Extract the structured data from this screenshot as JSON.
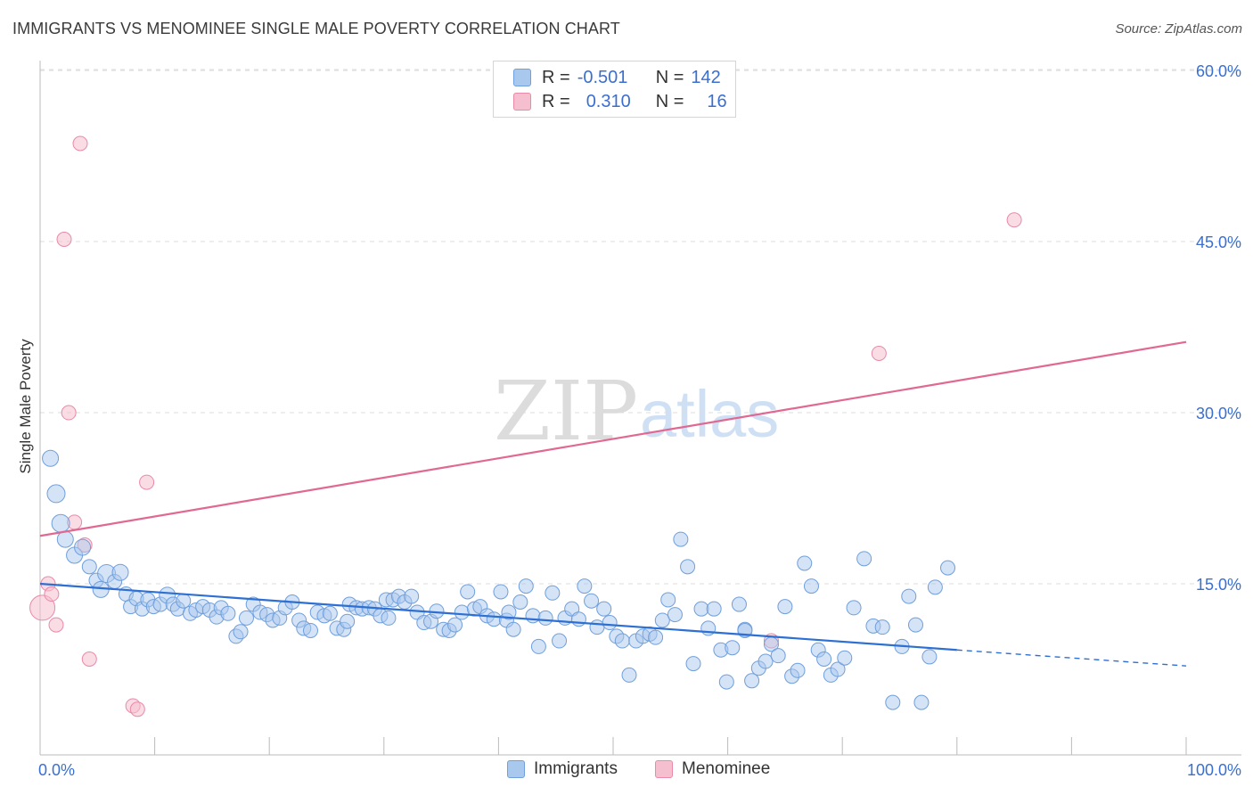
{
  "title": "IMMIGRANTS VS MENOMINEE SINGLE MALE POVERTY CORRELATION CHART",
  "source": "Source: ZipAtlas.com",
  "watermark": {
    "zip": "ZIP",
    "atlas": "atlas"
  },
  "colors": {
    "blue_fill": "#a9c8ee",
    "blue_stroke": "#6f9fdc",
    "blue_line": "#2d6fd2",
    "pink_fill": "#f6bfd0",
    "pink_stroke": "#e88aa8",
    "pink_line": "#e06891",
    "axis_text": "#3a6fd0",
    "grid": "#dcdcdc"
  },
  "legend_top": {
    "rows": [
      {
        "r_label": "R =",
        "r_value": "-0.501",
        "n_label": "N =",
        "n_value": "142"
      },
      {
        "r_label": "R =",
        "r_value": "0.310",
        "n_label": "N =",
        "n_value": "16"
      }
    ]
  },
  "legend_bottom": {
    "immigrants": "Immigrants",
    "menominee": "Menominee"
  },
  "chart_data": {
    "type": "scatter",
    "title": "IMMIGRANTS VS MENOMINEE SINGLE MALE POVERTY CORRELATION CHART",
    "xlabel": "",
    "ylabel": "Single Male Poverty",
    "xlim": [
      0,
      100
    ],
    "ylim": [
      0,
      60
    ],
    "x_tick_labels": [
      "0.0%",
      "100.0%"
    ],
    "y_tick_labels": [
      "15.0%",
      "30.0%",
      "45.0%",
      "60.0%"
    ],
    "y_ticks": [
      15,
      30,
      45,
      60
    ],
    "grid": true,
    "legend_position": "top-center",
    "series": [
      {
        "name": "Immigrants",
        "r": -0.501,
        "n": 142,
        "trend": {
          "x_start": 0,
          "y_start": 15.0,
          "x_end": 80,
          "y_end": 9.2,
          "dash_to_x": 100,
          "dash_to_y": 7.8
        },
        "points": [
          [
            0.9,
            26.0,
            9
          ],
          [
            1.4,
            22.9,
            10
          ],
          [
            1.8,
            20.3,
            10
          ],
          [
            2.2,
            18.9,
            9
          ],
          [
            3.0,
            17.5,
            9
          ],
          [
            3.7,
            18.2,
            9
          ],
          [
            4.3,
            16.5,
            8
          ],
          [
            4.9,
            15.3,
            8
          ],
          [
            5.3,
            14.5,
            9
          ],
          [
            5.8,
            15.9,
            10
          ],
          [
            6.5,
            15.2,
            8
          ],
          [
            7.0,
            16.0,
            9
          ],
          [
            7.5,
            14.1,
            8
          ],
          [
            7.9,
            13.0,
            8
          ],
          [
            8.4,
            13.7,
            8
          ],
          [
            8.9,
            12.8,
            8
          ],
          [
            9.4,
            13.6,
            8
          ],
          [
            9.9,
            13.0,
            8
          ],
          [
            10.5,
            13.2,
            8
          ],
          [
            11.1,
            14.0,
            9
          ],
          [
            11.6,
            13.2,
            8
          ],
          [
            12.0,
            12.8,
            8
          ],
          [
            12.5,
            13.5,
            8
          ],
          [
            13.1,
            12.4,
            8
          ],
          [
            13.6,
            12.7,
            8
          ],
          [
            14.2,
            13.0,
            8
          ],
          [
            14.8,
            12.7,
            8
          ],
          [
            15.4,
            12.1,
            8
          ],
          [
            15.8,
            12.9,
            8
          ],
          [
            16.4,
            12.4,
            8
          ],
          [
            17.1,
            10.4,
            8
          ],
          [
            17.5,
            10.8,
            8
          ],
          [
            18.0,
            12.0,
            8
          ],
          [
            18.6,
            13.2,
            8
          ],
          [
            19.2,
            12.5,
            8
          ],
          [
            19.8,
            12.3,
            8
          ],
          [
            20.3,
            11.8,
            8
          ],
          [
            20.9,
            12.0,
            8
          ],
          [
            21.4,
            12.9,
            8
          ],
          [
            22.0,
            13.4,
            8
          ],
          [
            22.6,
            11.8,
            8
          ],
          [
            23.0,
            11.1,
            8
          ],
          [
            23.6,
            10.9,
            8
          ],
          [
            24.2,
            12.5,
            8
          ],
          [
            24.8,
            12.2,
            8
          ],
          [
            25.3,
            12.4,
            8
          ],
          [
            25.9,
            11.1,
            8
          ],
          [
            26.5,
            11.0,
            8
          ],
          [
            27.0,
            13.2,
            8
          ],
          [
            27.6,
            12.9,
            8
          ],
          [
            28.1,
            12.8,
            8
          ],
          [
            28.7,
            12.9,
            8
          ],
          [
            29.2,
            12.8,
            8
          ],
          [
            29.7,
            12.2,
            8
          ],
          [
            30.2,
            13.6,
            8
          ],
          [
            30.8,
            13.6,
            8
          ],
          [
            31.3,
            13.9,
            8
          ],
          [
            31.8,
            13.4,
            8
          ],
          [
            32.4,
            13.9,
            8
          ],
          [
            32.9,
            12.5,
            8
          ],
          [
            33.5,
            11.6,
            8
          ],
          [
            34.1,
            11.7,
            8
          ],
          [
            34.6,
            12.6,
            8
          ],
          [
            35.2,
            11.0,
            8
          ],
          [
            35.7,
            10.9,
            8
          ],
          [
            36.2,
            11.4,
            8
          ],
          [
            36.8,
            12.5,
            8
          ],
          [
            37.3,
            14.3,
            8
          ],
          [
            37.9,
            12.8,
            8
          ],
          [
            38.4,
            13.0,
            8
          ],
          [
            39.0,
            12.2,
            8
          ],
          [
            39.6,
            11.9,
            8
          ],
          [
            40.2,
            14.3,
            8
          ],
          [
            40.7,
            11.8,
            8
          ],
          [
            41.3,
            11.0,
            8
          ],
          [
            41.9,
            13.4,
            8
          ],
          [
            42.4,
            14.8,
            8
          ],
          [
            43.0,
            12.2,
            8
          ],
          [
            43.5,
            9.5,
            8
          ],
          [
            44.1,
            12.0,
            8
          ],
          [
            44.7,
            14.2,
            8
          ],
          [
            45.3,
            10.0,
            8
          ],
          [
            45.8,
            12.0,
            8
          ],
          [
            46.4,
            12.8,
            8
          ],
          [
            47.0,
            11.9,
            8
          ],
          [
            47.5,
            14.8,
            8
          ],
          [
            48.1,
            13.5,
            8
          ],
          [
            48.6,
            11.2,
            8
          ],
          [
            49.2,
            12.8,
            8
          ],
          [
            49.7,
            11.6,
            8
          ],
          [
            50.3,
            10.4,
            8
          ],
          [
            50.8,
            10.0,
            8
          ],
          [
            51.4,
            7.0,
            8
          ],
          [
            52.0,
            10.0,
            8
          ],
          [
            52.6,
            10.4,
            8
          ],
          [
            53.2,
            10.6,
            8
          ],
          [
            53.7,
            10.3,
            8
          ],
          [
            54.3,
            11.8,
            8
          ],
          [
            54.8,
            13.6,
            8
          ],
          [
            55.4,
            12.3,
            8
          ],
          [
            55.9,
            18.9,
            8
          ],
          [
            56.5,
            16.5,
            8
          ],
          [
            57.0,
            8.0,
            8
          ],
          [
            57.7,
            12.8,
            8
          ],
          [
            58.3,
            11.1,
            8
          ],
          [
            58.8,
            12.8,
            8
          ],
          [
            59.4,
            9.2,
            8
          ],
          [
            59.9,
            6.4,
            8
          ],
          [
            60.4,
            9.4,
            8
          ],
          [
            61.0,
            13.2,
            8
          ],
          [
            61.5,
            11.0,
            8
          ],
          [
            62.1,
            6.5,
            8
          ],
          [
            62.7,
            7.6,
            8
          ],
          [
            63.3,
            8.2,
            8
          ],
          [
            63.8,
            9.7,
            8
          ],
          [
            64.4,
            8.7,
            8
          ],
          [
            65.0,
            13.0,
            8
          ],
          [
            65.6,
            6.9,
            8
          ],
          [
            66.1,
            7.4,
            8
          ],
          [
            66.7,
            16.8,
            8
          ],
          [
            67.3,
            14.8,
            8
          ],
          [
            67.9,
            9.2,
            8
          ],
          [
            68.4,
            8.4,
            8
          ],
          [
            69.0,
            7.0,
            8
          ],
          [
            69.6,
            7.5,
            8
          ],
          [
            70.2,
            8.5,
            8
          ],
          [
            71.0,
            12.9,
            8
          ],
          [
            71.9,
            17.2,
            8
          ],
          [
            72.7,
            11.3,
            8
          ],
          [
            73.5,
            11.2,
            8
          ],
          [
            74.4,
            4.6,
            8
          ],
          [
            75.2,
            9.5,
            8
          ],
          [
            75.8,
            13.9,
            8
          ],
          [
            76.4,
            11.4,
            8
          ],
          [
            76.9,
            4.6,
            8
          ],
          [
            77.6,
            8.6,
            8
          ],
          [
            78.1,
            14.7,
            8
          ],
          [
            79.2,
            16.4,
            8
          ],
          [
            61.5,
            10.9,
            8
          ],
          [
            40.9,
            12.5,
            8
          ],
          [
            30.4,
            12.0,
            8
          ],
          [
            26.8,
            11.7,
            8
          ]
        ]
      },
      {
        "name": "Menominee",
        "r": 0.31,
        "n": 16,
        "trend": {
          "x_start": 0,
          "y_start": 19.2,
          "x_end": 100,
          "y_end": 36.2
        },
        "points": [
          [
            0.2,
            12.9,
            14
          ],
          [
            0.7,
            15.0,
            8
          ],
          [
            1.0,
            14.1,
            8
          ],
          [
            1.4,
            11.4,
            8
          ],
          [
            2.1,
            45.2,
            8
          ],
          [
            2.5,
            30.0,
            8
          ],
          [
            3.0,
            20.4,
            8
          ],
          [
            3.5,
            53.6,
            8
          ],
          [
            3.9,
            18.4,
            8
          ],
          [
            4.3,
            8.4,
            8
          ],
          [
            8.1,
            4.3,
            8
          ],
          [
            8.5,
            4.0,
            8
          ],
          [
            9.3,
            23.9,
            8
          ],
          [
            63.8,
            10.0,
            8
          ],
          [
            73.2,
            35.2,
            8
          ],
          [
            85.0,
            46.9,
            8
          ]
        ]
      }
    ]
  }
}
